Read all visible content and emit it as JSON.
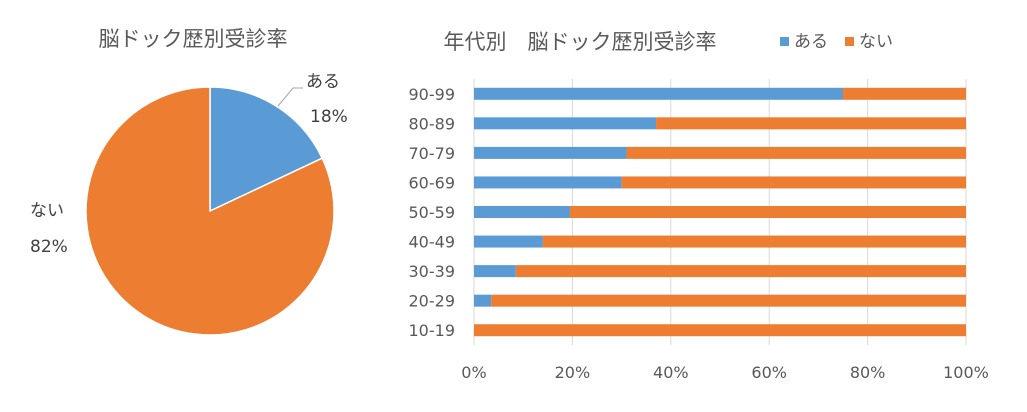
{
  "chart_data": [
    {
      "type": "pie",
      "title": "脳ドック歴別受診率",
      "slices": [
        {
          "label": "ある",
          "value": 18,
          "value_label": "18%",
          "color": "#5b9bd5"
        },
        {
          "label": "ない",
          "value": 82,
          "value_label": "82%",
          "color": "#ed7d31"
        }
      ]
    },
    {
      "type": "bar",
      "orientation": "horizontal",
      "stacked": "percent",
      "title": "年代別　脳ドック歴別受診率",
      "categories": [
        "90-99",
        "80-89",
        "70-79",
        "60-69",
        "50-59",
        "40-49",
        "30-39",
        "20-29",
        "10-19"
      ],
      "series": [
        {
          "name": "ある",
          "color": "#5b9bd5",
          "values": [
            75,
            37,
            31,
            30,
            19.5,
            14,
            8.5,
            3.5,
            0
          ]
        },
        {
          "name": "ない",
          "color": "#ed7d31",
          "values": [
            25,
            63,
            69,
            70,
            80.5,
            86,
            91.5,
            96.5,
            100
          ]
        }
      ],
      "xlim": [
        0,
        100
      ],
      "xticks": [
        "0%",
        "20%",
        "40%",
        "60%",
        "80%",
        "100%"
      ],
      "grid": true,
      "legend": "top"
    }
  ]
}
